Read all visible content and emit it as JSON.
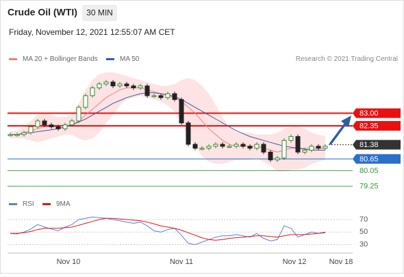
{
  "chart_data": {
    "type": "candlestick",
    "title": "Crude Oil (WTI)",
    "interval": "30 MIN",
    "subtitle": "Friday, November 12, 2021 12:55:07 AM CET",
    "credit": "Research © 2021 Trading Central",
    "x_labels": [
      "Nov 10",
      "Nov 11",
      "Nov 12",
      "Nov 18"
    ],
    "ylim": [
      78.8,
      85.3
    ],
    "price": {
      "values": [
        81.9,
        81.9,
        82.0,
        82.3,
        82.6,
        82.4,
        82.3,
        82.2,
        82.4,
        82.6,
        83.3,
        83.9,
        84.3,
        84.5,
        84.6,
        84.4,
        84.5,
        84.4,
        84.3,
        84.4,
        83.9,
        83.9,
        83.8,
        84.0,
        83.7,
        82.5,
        81.4,
        81.2,
        81.2,
        81.3,
        81.4,
        81.3,
        81.3,
        81.4,
        81.3,
        81.2,
        81.4,
        81.0,
        80.6,
        80.7,
        81.6,
        81.8,
        81.0,
        81.1,
        81.3,
        81.2,
        81.3
      ],
      "up_color": "#2e8b2e",
      "down_color": "#222222"
    },
    "series": [
      {
        "name": "MA 20 + Bollinger Bands",
        "color": "#f08080",
        "values": [
          81.9,
          81.9,
          82.0,
          82.1,
          82.2,
          82.3,
          82.3,
          82.3,
          82.35,
          82.4,
          82.6,
          82.9,
          83.2,
          83.5,
          83.8,
          84.0,
          84.2,
          84.3,
          84.3,
          84.3,
          84.2,
          84.1,
          84.0,
          83.9,
          83.8,
          83.6,
          83.3,
          83.0,
          82.6,
          82.2,
          81.9,
          81.6,
          81.4,
          81.3,
          81.3,
          81.3,
          81.3,
          81.2,
          81.1,
          81.0,
          81.1,
          81.2,
          81.2,
          81.2,
          81.2,
          81.2,
          81.2
        ],
        "upper": [
          82.1,
          82.1,
          82.3,
          82.6,
          82.9,
          83.0,
          82.9,
          82.8,
          82.8,
          82.9,
          83.5,
          84.2,
          84.7,
          85.0,
          85.1,
          85.1,
          85.0,
          84.9,
          84.8,
          84.7,
          84.6,
          84.5,
          84.4,
          84.4,
          84.5,
          84.7,
          84.8,
          84.7,
          84.4,
          84.0,
          83.4,
          82.8,
          82.3,
          82.0,
          82.0,
          82.0,
          81.9,
          81.9,
          81.9,
          82.0,
          82.2,
          82.3,
          82.3,
          82.2,
          82.0,
          81.9,
          81.8
        ],
        "lower": [
          81.7,
          81.7,
          81.7,
          81.6,
          81.5,
          81.6,
          81.7,
          81.8,
          81.9,
          81.9,
          81.7,
          81.6,
          81.7,
          82.0,
          82.5,
          82.9,
          83.4,
          83.7,
          83.8,
          83.9,
          83.8,
          83.7,
          83.6,
          83.4,
          83.1,
          82.5,
          81.8,
          81.3,
          80.8,
          80.5,
          80.4,
          80.4,
          80.5,
          80.6,
          80.6,
          80.6,
          80.7,
          80.5,
          80.3,
          80.0,
          80.0,
          80.1,
          80.1,
          80.2,
          80.4,
          80.5,
          80.6
        ],
        "band_color": "#fde3e3"
      },
      {
        "name": "MA 50",
        "color": "#3b5ba5",
        "values": [
          81.9,
          81.9,
          81.95,
          82.0,
          82.05,
          82.1,
          82.15,
          82.2,
          82.3,
          82.4,
          82.55,
          82.7,
          82.9,
          83.1,
          83.3,
          83.5,
          83.65,
          83.8,
          83.9,
          84.0,
          84.05,
          84.05,
          84.0,
          83.95,
          83.85,
          83.7,
          83.5,
          83.3,
          83.1,
          82.9,
          82.7,
          82.5,
          82.3,
          82.1,
          81.95,
          81.8,
          81.7,
          81.6,
          81.5,
          81.4,
          81.3,
          81.25,
          81.2,
          81.15,
          81.1,
          81.1,
          81.1
        ]
      }
    ],
    "levels": [
      {
        "value": 83.0,
        "label": "83.00",
        "color": "#e81010",
        "boxed": true
      },
      {
        "value": 82.35,
        "label": "82.35",
        "color": "#e81010",
        "boxed": true
      },
      {
        "value": 81.38,
        "label": "81.38",
        "color": "#333333",
        "boxed": true
      },
      {
        "value": 80.65,
        "label": "80.65",
        "color": "#2a6fc9",
        "boxed": true
      },
      {
        "value": 80.05,
        "label": "80.05",
        "color": "#2f9a2f",
        "boxed": false
      },
      {
        "value": 79.25,
        "label": "79.25",
        "color": "#2f9a2f",
        "boxed": false
      }
    ],
    "rsi": {
      "ylim": [
        22,
        82
      ],
      "yticks": [
        70,
        50,
        30
      ],
      "series": [
        {
          "name": "RSI",
          "color": "#5b7fd6",
          "values": [
            48,
            47,
            50,
            55,
            62,
            58,
            55,
            52,
            58,
            62,
            70,
            72,
            74,
            73,
            72,
            70,
            68,
            66,
            64,
            66,
            60,
            52,
            50,
            54,
            56,
            45,
            32,
            30,
            34,
            38,
            42,
            44,
            44,
            46,
            44,
            42,
            48,
            40,
            36,
            38,
            60,
            56,
            42,
            46,
            50,
            48,
            50
          ]
        },
        {
          "name": "9MA",
          "color": "#e81010",
          "values": [
            48,
            48,
            49,
            51,
            54,
            56,
            56,
            56,
            57,
            58,
            61,
            64,
            67,
            70,
            72,
            72,
            71,
            70,
            69,
            68,
            66,
            63,
            60,
            58,
            56,
            53,
            49,
            45,
            41,
            38,
            37,
            38,
            40,
            41,
            42,
            43,
            44,
            44,
            43,
            42,
            44,
            46,
            46,
            46,
            47,
            48,
            49
          ]
        }
      ]
    }
  }
}
